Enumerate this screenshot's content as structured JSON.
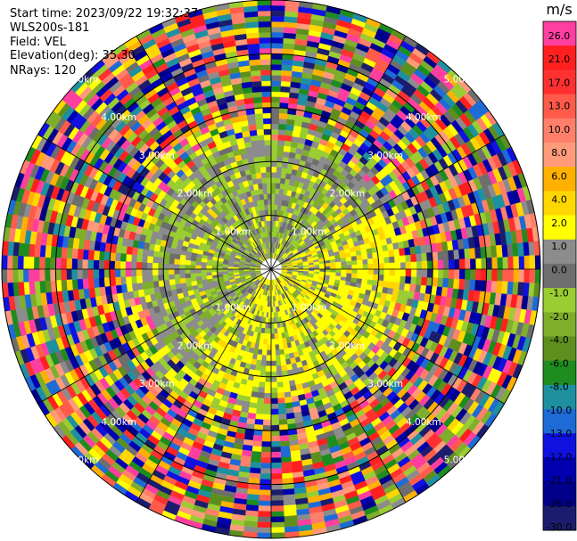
{
  "header": {
    "start_time": "Start time: 2023/09/22 19:32:37",
    "instrument": "WLS200s-181",
    "field": "Field: VEL",
    "elevation": "Elevation(deg): 35.30",
    "nrays": "NRays: 120"
  },
  "chart_data": {
    "type": "heatmap",
    "projection": "polar (PPI)",
    "field": "VEL",
    "nrays": 120,
    "elevation_deg": 35.3,
    "range_rings_km": [
      1.0,
      2.0,
      3.0,
      4.0,
      5.0
    ],
    "ring_labels": [
      "1.00km",
      "2.00km",
      "3.00km",
      "4.00km",
      "5.00km"
    ],
    "colorbar": {
      "unit": "m/s",
      "tick_labels": [
        "26.0",
        "21.0",
        "17.0",
        "13.0",
        "10.0",
        "8.0",
        "6.0",
        "4.0",
        "2.0",
        "1.0",
        "0.0",
        "-1.0",
        "-2.0",
        "-4.0",
        "-6.0",
        "-8.0",
        "-10.0",
        "-13.0",
        "-17.0",
        "-21.0",
        "-26.0",
        "-30.0"
      ],
      "colors": [
        "#ff3fa0",
        "#ff1f1f",
        "#ff3030",
        "#ff5a4a",
        "#ff7f6a",
        "#ff9a7a",
        "#ffb000",
        "#ffd700",
        "#ffff00",
        "#8c8c8c",
        "#6e6e6e",
        "#9acd32",
        "#7fae2a",
        "#5e8f1e",
        "#1e8c1e",
        "#1e90a0",
        "#1e6bd6",
        "#1010e0",
        "#0000b0",
        "#00008b",
        "#1c1c6e"
      ]
    },
    "pattern": {
      "inner_radius_km": 2.45,
      "inner_near_zero": "gray and green (approx -4 to 0 m/s)",
      "inner_positive_side": "yellow (approx 1 to 4 m/s), east and south",
      "outer": "noise across full colour range"
    }
  }
}
